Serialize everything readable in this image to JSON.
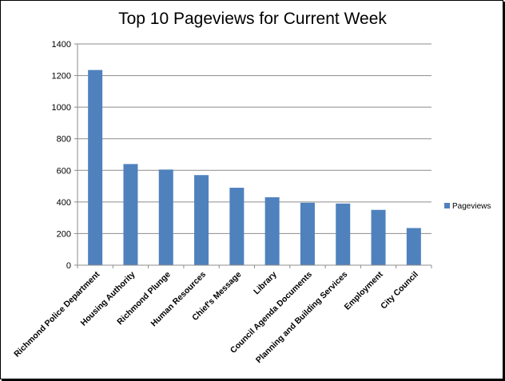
{
  "chart_data": {
    "type": "bar",
    "title": "Top 10 Pageviews for Current Week",
    "xlabel": "",
    "ylabel": "",
    "categories": [
      "Richmond Police Department",
      "Housing Authority",
      "Richmond Plunge",
      "Human Resources",
      "Chief's Message",
      "Library",
      "Council Agenda Documents",
      "Planning and Building Services",
      "Employment",
      "City Council"
    ],
    "series": [
      {
        "name": "Pageviews",
        "color": "#4f81bd",
        "values": [
          1235,
          640,
          605,
          570,
          490,
          430,
          395,
          390,
          350,
          235
        ]
      }
    ],
    "ylim": [
      0,
      1400
    ],
    "yticks": [
      "0",
      "200",
      "400",
      "600",
      "800",
      "1000",
      "1200",
      "1400"
    ],
    "grid": true,
    "legend": "right"
  }
}
